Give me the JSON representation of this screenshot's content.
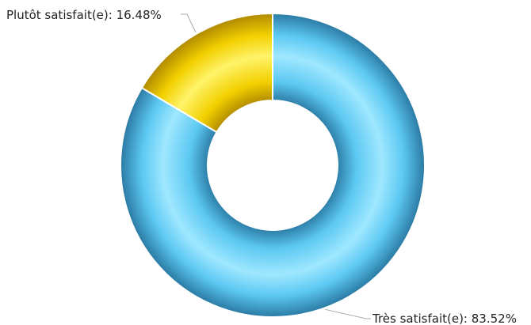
{
  "chart_data": {
    "type": "pie",
    "style": "donut",
    "categories": [
      "Très satisfait(e)",
      "Plutôt satisfait(e)"
    ],
    "values": [
      83.52,
      16.48
    ],
    "value_labels": [
      "83.52%",
      "16.48%"
    ],
    "colors": [
      "#5cc8f2",
      "#f2d000"
    ],
    "colors_light": [
      "#9fe8ff",
      "#fff36a"
    ],
    "colors_dark": [
      "#2a7aa3",
      "#b08a00"
    ]
  }
}
